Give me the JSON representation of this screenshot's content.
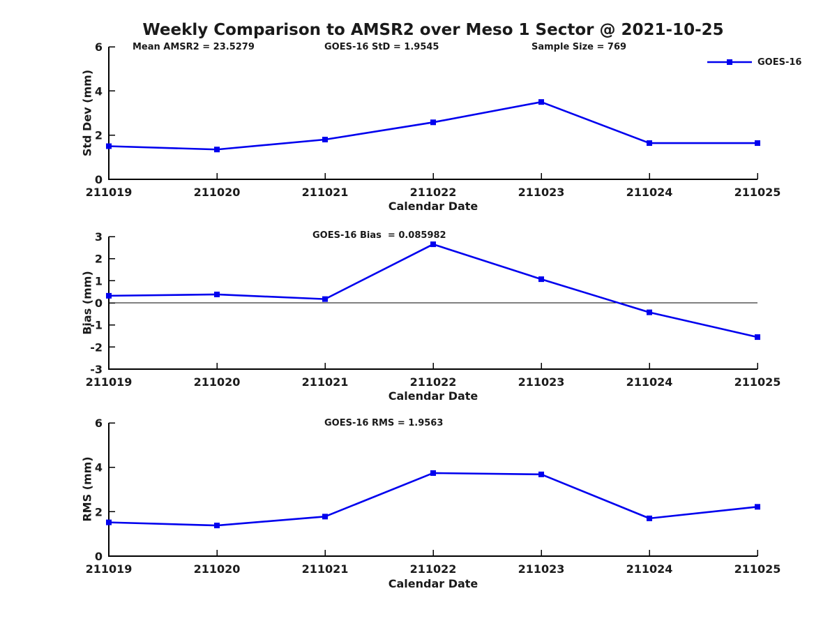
{
  "title": "Weekly Comparison to AMSR2 over Meso 1 Sector @ 2021-10-25",
  "legend": {
    "label": "GOES-16",
    "position": "top-right"
  },
  "style": {
    "line_color": "#0000EE",
    "axis_color": "#000000",
    "text_color": "#1a1a1a",
    "background": "#ffffff"
  },
  "chart_data": [
    {
      "type": "line",
      "panel": "std-dev",
      "xlabel": "Calendar Date",
      "ylabel": "Std Dev (mm)",
      "ylim": [
        0,
        6
      ],
      "yticks": [
        0,
        2,
        4,
        6
      ],
      "grid": false,
      "zero_line": false,
      "categories": [
        "211019",
        "211020",
        "211021",
        "211022",
        "211023",
        "211024",
        "211025"
      ],
      "series": [
        {
          "name": "GOES-16",
          "values": [
            1.5,
            1.35,
            1.8,
            2.58,
            3.5,
            1.64,
            1.64
          ]
        }
      ],
      "annotations": [
        "Mean AMSR2 = 23.5279",
        "GOES-16 StD = 1.9545",
        "Sample Size = 769"
      ]
    },
    {
      "type": "line",
      "panel": "bias",
      "xlabel": "Calendar Date",
      "ylabel": "Bias (mm)",
      "ylim": [
        -3,
        3
      ],
      "yticks": [
        3,
        2,
        1,
        0,
        -1,
        -2,
        -3
      ],
      "grid": false,
      "zero_line": true,
      "categories": [
        "211019",
        "211020",
        "211021",
        "211022",
        "211023",
        "211024",
        "211025"
      ],
      "series": [
        {
          "name": "GOES-16",
          "values": [
            0.32,
            0.38,
            0.17,
            2.65,
            1.07,
            -0.43,
            -1.55
          ]
        }
      ],
      "annotations": [
        "GOES-16 Bias  = 0.085982"
      ]
    },
    {
      "type": "line",
      "panel": "rms",
      "xlabel": "Calendar Date",
      "ylabel": "RMS (mm)",
      "ylim": [
        0,
        6
      ],
      "yticks": [
        0,
        2,
        4,
        6
      ],
      "grid": false,
      "zero_line": false,
      "categories": [
        "211019",
        "211020",
        "211021",
        "211022",
        "211023",
        "211024",
        "211025"
      ],
      "series": [
        {
          "name": "GOES-16",
          "values": [
            1.52,
            1.38,
            1.78,
            3.74,
            3.68,
            1.7,
            2.22
          ]
        }
      ],
      "annotations": [
        "GOES-16 RMS = 1.9563"
      ]
    }
  ]
}
